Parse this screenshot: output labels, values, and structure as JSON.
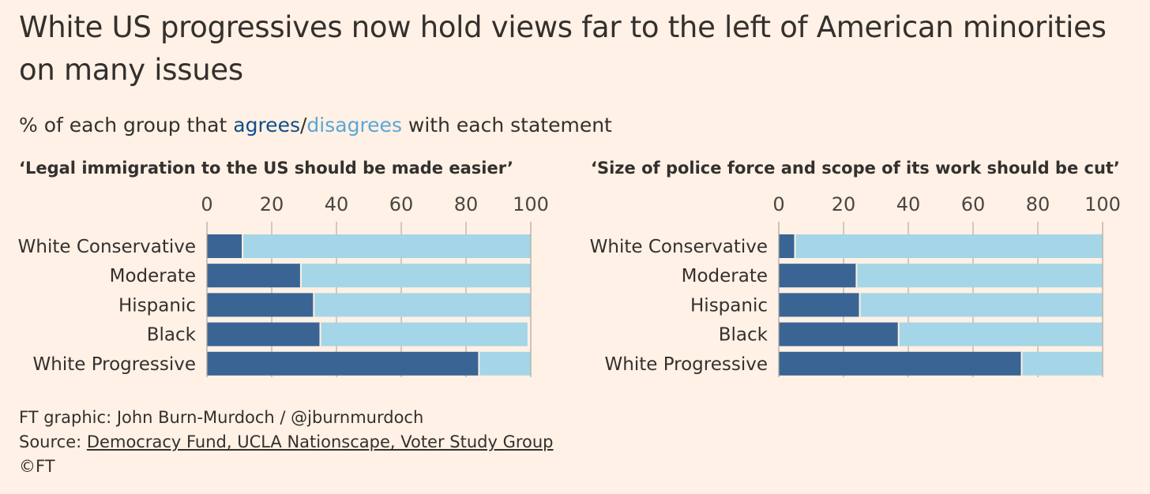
{
  "title": "White US progressives now hold views far to the left of American minorities on many issues",
  "subtitle": {
    "prefix": "% of each group that ",
    "agrees": "agrees",
    "slash": "/",
    "disagrees": "disagrees",
    "suffix": " with each statement"
  },
  "colors": {
    "agree": "#3a6494",
    "disagree": "#a4d6e7",
    "background": "#fff1e5"
  },
  "chart_data": [
    {
      "type": "bar",
      "orientation": "horizontal",
      "stacked": true,
      "title": "‘Legal immigration to the US should be made easier’",
      "categories": [
        "White Conservative",
        "Moderate",
        "Hispanic",
        "Black",
        "White Progressive"
      ],
      "series": [
        {
          "name": "agrees",
          "values": [
            11,
            29,
            33,
            35,
            84
          ]
        },
        {
          "name": "disagrees",
          "values": [
            89,
            71,
            67,
            64,
            16
          ]
        }
      ],
      "xticks": [
        0,
        20,
        40,
        60,
        80,
        100
      ],
      "xlim": [
        0,
        100
      ],
      "grid": true
    },
    {
      "type": "bar",
      "orientation": "horizontal",
      "stacked": true,
      "title": "‘Size of police force and scope of its work should be cut’",
      "categories": [
        "White Conservative",
        "Moderate",
        "Hispanic",
        "Black",
        "White Progressive"
      ],
      "series": [
        {
          "name": "agrees",
          "values": [
            5,
            24,
            25,
            37,
            75
          ]
        },
        {
          "name": "disagrees",
          "values": [
            95,
            76,
            75,
            63,
            25
          ]
        }
      ],
      "xticks": [
        0,
        20,
        40,
        60,
        80,
        100
      ],
      "xlim": [
        0,
        100
      ],
      "grid": true
    }
  ],
  "footer": {
    "credit": "FT graphic: John Burn-Murdoch / @jburnmurdoch",
    "source_prefix": "Source: ",
    "source_link": "Democracy Fund, UCLA Nationscape, Voter Study Group",
    "copyright": "©FT"
  }
}
